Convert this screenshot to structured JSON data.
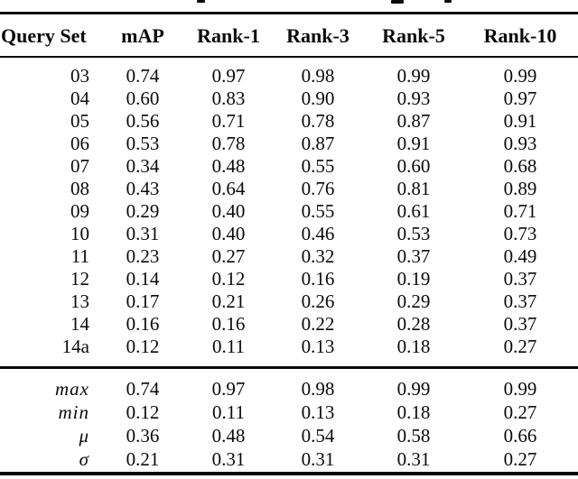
{
  "colors": {
    "text": "#0a0a0a",
    "background": "#ffffff",
    "rule": "#0a0a0a"
  },
  "table": {
    "columns": [
      "Query Set",
      "mAP",
      "Rank-1",
      "Rank-3",
      "Rank-5",
      "Rank-10"
    ],
    "rows": [
      {
        "query_set": "03",
        "values": [
          "0.74",
          "0.97",
          "0.98",
          "0.99",
          "0.99"
        ]
      },
      {
        "query_set": "04",
        "values": [
          "0.60",
          "0.83",
          "0.90",
          "0.93",
          "0.97"
        ]
      },
      {
        "query_set": "05",
        "values": [
          "0.56",
          "0.71",
          "0.78",
          "0.87",
          "0.91"
        ]
      },
      {
        "query_set": "06",
        "values": [
          "0.53",
          "0.78",
          "0.87",
          "0.91",
          "0.93"
        ]
      },
      {
        "query_set": "07",
        "values": [
          "0.34",
          "0.48",
          "0.55",
          "0.60",
          "0.68"
        ]
      },
      {
        "query_set": "08",
        "values": [
          "0.43",
          "0.64",
          "0.76",
          "0.81",
          "0.89"
        ]
      },
      {
        "query_set": "09",
        "values": [
          "0.29",
          "0.40",
          "0.55",
          "0.61",
          "0.71"
        ]
      },
      {
        "query_set": "10",
        "values": [
          "0.31",
          "0.40",
          "0.46",
          "0.53",
          "0.73"
        ]
      },
      {
        "query_set": "11",
        "values": [
          "0.23",
          "0.27",
          "0.32",
          "0.37",
          "0.49"
        ]
      },
      {
        "query_set": "12",
        "values": [
          "0.14",
          "0.12",
          "0.16",
          "0.19",
          "0.37"
        ]
      },
      {
        "query_set": "13",
        "values": [
          "0.17",
          "0.21",
          "0.26",
          "0.29",
          "0.37"
        ]
      },
      {
        "query_set": "14",
        "values": [
          "0.16",
          "0.16",
          "0.22",
          "0.28",
          "0.37"
        ]
      },
      {
        "query_set": "14a",
        "values": [
          "0.12",
          "0.11",
          "0.13",
          "0.18",
          "0.27"
        ]
      }
    ],
    "summary_rows": [
      {
        "label": "max",
        "values": [
          "0.74",
          "0.97",
          "0.98",
          "0.99",
          "0.99"
        ]
      },
      {
        "label": "min",
        "values": [
          "0.12",
          "0.11",
          "0.13",
          "0.18",
          "0.27"
        ]
      },
      {
        "label": "μ",
        "values": [
          "0.36",
          "0.48",
          "0.54",
          "0.58",
          "0.66"
        ]
      },
      {
        "label": "σ",
        "values": [
          "0.21",
          "0.31",
          "0.31",
          "0.31",
          "0.27"
        ]
      }
    ]
  }
}
